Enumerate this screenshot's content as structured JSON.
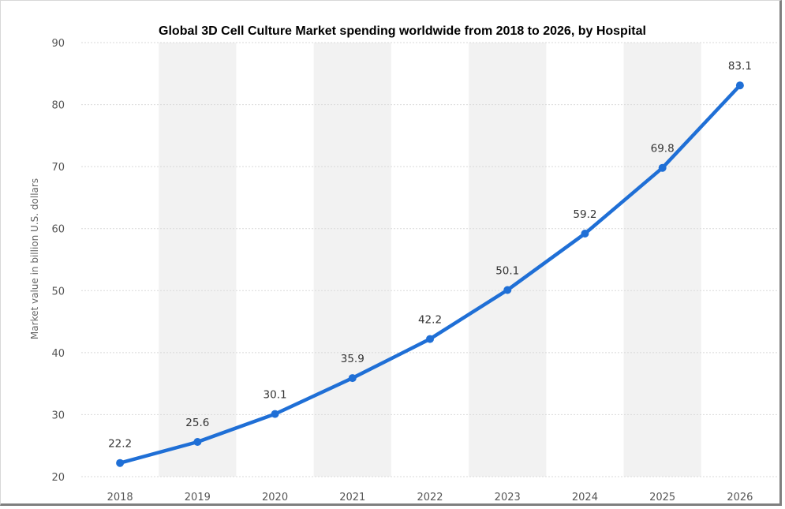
{
  "chart_data": {
    "type": "line",
    "title": "Global 3D Cell Culture Market spending worldwide from 2018 to 2026, by Hospital",
    "xlabel": "",
    "ylabel": "Market value in billion U.S. dollars",
    "categories": [
      "2018",
      "2019",
      "2020",
      "2021",
      "2022",
      "2023",
      "2024",
      "2025",
      "2026"
    ],
    "values": [
      22.2,
      25.6,
      30.1,
      35.9,
      42.2,
      50.1,
      59.2,
      69.8,
      83.1
    ],
    "value_labels": [
      "22.2",
      "25.6",
      "30.1",
      "35.9",
      "42.2",
      "50.1",
      "59.2",
      "69.8",
      "83.1"
    ],
    "ylim": [
      20,
      90
    ],
    "yticks": [
      "20",
      "30",
      "40",
      "50",
      "60",
      "70",
      "80",
      "90"
    ],
    "grid": true,
    "legend": "none",
    "line_color": "#1f6fd6",
    "band_color": "#f2f2f2"
  }
}
